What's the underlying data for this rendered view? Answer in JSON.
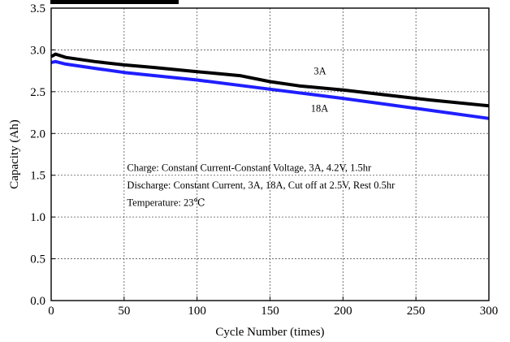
{
  "chart_data": {
    "type": "line",
    "title": "",
    "xlabel": "Cycle Number (times)",
    "ylabel": "Capacity (Ah)",
    "xlim": [
      0,
      300
    ],
    "ylim": [
      0.0,
      3.5
    ],
    "x_ticks": [
      0,
      50,
      100,
      150,
      200,
      250,
      300
    ],
    "y_ticks": [
      0.0,
      0.5,
      1.0,
      1.5,
      2.0,
      2.5,
      3.0,
      3.5
    ],
    "y_tick_labels": [
      "0.0",
      "0.5",
      "1.0",
      "1.5",
      "2.0",
      "2.5",
      "3.0",
      "3.5"
    ],
    "grid": true,
    "series": [
      {
        "name": "3A",
        "color": "#000000",
        "x": [
          0,
          3,
          10,
          30,
          50,
          70,
          100,
          130,
          150,
          170,
          200,
          230,
          260,
          300
        ],
        "y": [
          2.92,
          2.95,
          2.91,
          2.86,
          2.82,
          2.79,
          2.74,
          2.69,
          2.62,
          2.57,
          2.52,
          2.46,
          2.4,
          2.33
        ]
      },
      {
        "name": "18A",
        "color": "#1f1fff",
        "x": [
          0,
          3,
          10,
          30,
          50,
          100,
          150,
          200,
          250,
          300
        ],
        "y": [
          2.85,
          2.86,
          2.83,
          2.78,
          2.73,
          2.64,
          2.53,
          2.42,
          2.3,
          2.18
        ]
      }
    ],
    "annotations": [
      "Charge: Constant Current-Constant Voltage, 3A, 4.2V, 1.5hr",
      "Discharge: Constant Current, 3A, 18A, Cut off at 2.5V, Rest 0.5hr",
      "Temperature: 23℃"
    ]
  }
}
